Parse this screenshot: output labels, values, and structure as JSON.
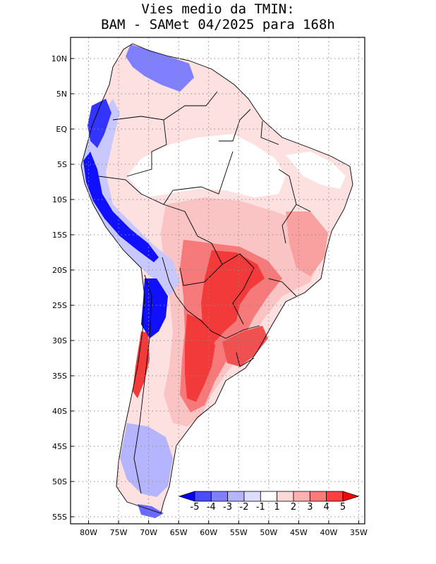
{
  "title": {
    "line1": "Vies medio da TMIN:",
    "line2": "BAM - SAMet 04/2025  para 168h"
  },
  "axes": {
    "lat_labels": [
      "10N",
      "5N",
      "EQ",
      "5S",
      "10S",
      "15S",
      "20S",
      "25S",
      "30S",
      "35S",
      "40S",
      "45S",
      "50S",
      "55S"
    ],
    "lat_values": [
      10,
      5,
      0,
      -5,
      -10,
      -15,
      -20,
      -25,
      -30,
      -35,
      -40,
      -45,
      -50,
      -55
    ],
    "lon_labels": [
      "80W",
      "75W",
      "70W",
      "65W",
      "60W",
      "55W",
      "50W",
      "45W",
      "40W",
      "35W"
    ],
    "lon_values": [
      -80,
      -75,
      -70,
      -65,
      -60,
      -55,
      -50,
      -45,
      -40,
      -35
    ],
    "lat_range": [
      -56,
      13
    ],
    "lon_range": [
      -83,
      -34
    ]
  },
  "colorbar": {
    "labels": [
      "-5",
      "-4",
      "-3",
      "-2",
      "-1",
      "1",
      "2",
      "3",
      "4",
      "5"
    ],
    "colors": [
      "#0000ff",
      "#4a4aff",
      "#8080ff",
      "#b4b4ff",
      "#dcdcff",
      "#ffffff",
      "#ffd8d8",
      "#ffb0b0",
      "#ff7a7a",
      "#ff4040",
      "#ff0000"
    ]
  },
  "colors": {
    "land_neutral": "#ffffff",
    "warm_strong": "#f23a3a",
    "warm_medium": "#f77a7a",
    "warm_light": "#fbcaca",
    "cool_strong": "#1010ff",
    "cool_medium": "#6a6aff",
    "cool_light": "#c8c8ff",
    "border": "#000000",
    "grid": "#8c8c8c"
  }
}
